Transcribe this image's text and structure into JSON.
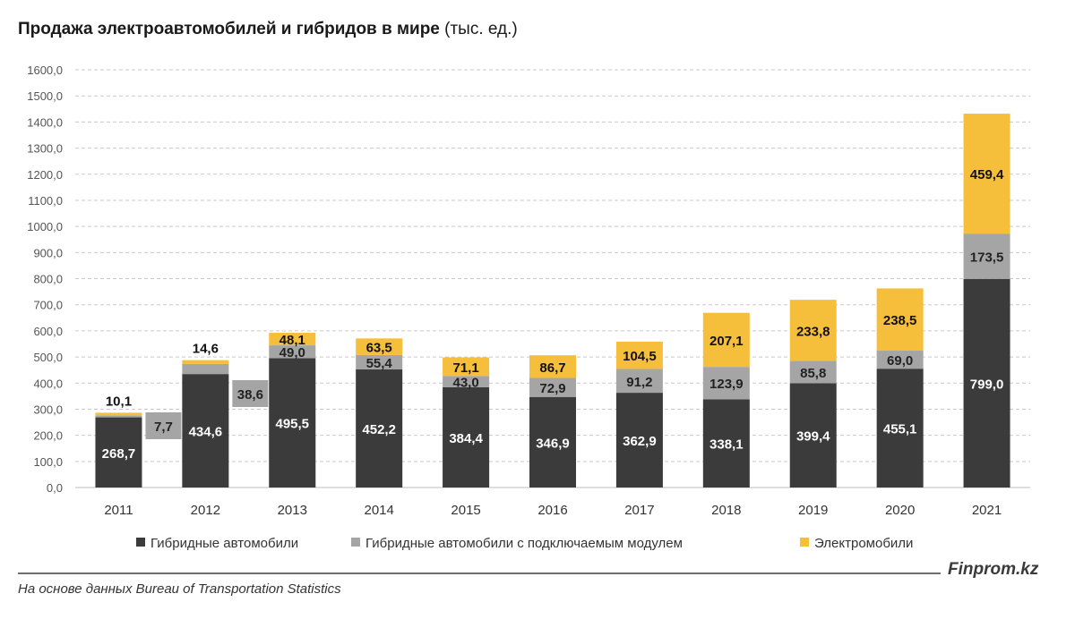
{
  "header": {
    "title_bold": "Продажа электроавтомобилей и гибридов в мире",
    "title_unit": "(тыс. ед.)"
  },
  "footer": {
    "brand": "Finprom.kz",
    "source": "На основе данных Bureau of Transportation Statistics"
  },
  "chart_data": {
    "type": "bar",
    "stacked": true,
    "title": "Продажа электроавтомобилей и гибридов в мире (тыс. ед.)",
    "categories": [
      "2011",
      "2012",
      "2013",
      "2014",
      "2015",
      "2016",
      "2017",
      "2018",
      "2019",
      "2020",
      "2021"
    ],
    "series": [
      {
        "name": "Гибридные автомобили",
        "color": "#3b3b3b",
        "values": [
          268.7,
          434.6,
          495.5,
          452.2,
          384.4,
          346.9,
          362.9,
          338.1,
          399.4,
          455.1,
          799.0
        ],
        "labels": [
          "268,7",
          "434,6",
          "495,5",
          "452,2",
          "384,4",
          "346,9",
          "362,9",
          "338,1",
          "399,4",
          "455,1",
          "799,0"
        ]
      },
      {
        "name": "Гибридные автомобили с подключаемым модулем",
        "color": "#a5a5a5",
        "values": [
          7.7,
          38.6,
          49.0,
          55.4,
          43.0,
          72.9,
          91.2,
          123.9,
          85.8,
          69.0,
          173.5
        ],
        "labels": [
          "7,7",
          "38,6",
          "49,0",
          "55,4",
          "43,0",
          "72,9",
          "91,2",
          "123,9",
          "85,8",
          "69,0",
          "173,5"
        ]
      },
      {
        "name": "Электромобили",
        "color": "#f5bf3b",
        "values": [
          10.1,
          14.6,
          48.1,
          63.5,
          71.1,
          86.7,
          104.5,
          207.1,
          233.8,
          238.5,
          459.4
        ],
        "labels": [
          "10,1",
          "14,6",
          "48,1",
          "63,5",
          "71,1",
          "86,7",
          "104,5",
          "207,1",
          "233,8",
          "238,5",
          "459,4"
        ]
      }
    ],
    "ylim": [
      0,
      1600
    ],
    "yticks": [
      "0,0",
      "100,0",
      "200,0",
      "300,0",
      "400,0",
      "500,0",
      "600,0",
      "700,0",
      "800,0",
      "900,0",
      "1000,0",
      "1100,0",
      "1200,0",
      "1300,0",
      "1400,0",
      "1500,0",
      "1600,0"
    ],
    "grid": true,
    "legend": "bottom",
    "xlabel": "",
    "ylabel": ""
  }
}
